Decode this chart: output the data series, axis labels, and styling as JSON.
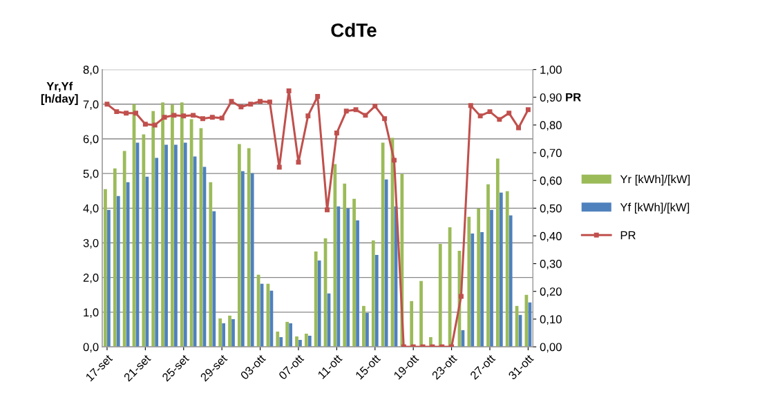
{
  "chart_data": {
    "type": "bar",
    "title": "CdTe",
    "ylabel": "Yr,Yf\n[h/day]",
    "y2label": "PR",
    "categories": [
      "17-set",
      null,
      null,
      null,
      "21-set",
      null,
      null,
      null,
      "25-set",
      null,
      null,
      null,
      "29-set",
      null,
      null,
      null,
      "03-ott",
      null,
      null,
      null,
      "07-ott",
      null,
      null,
      null,
      "11-ott",
      null,
      null,
      null,
      "15-ott",
      null,
      null,
      null,
      "19-ott",
      null,
      null,
      null,
      "23-ott",
      null,
      null,
      null,
      "27-ott",
      null,
      null,
      null,
      "31-ott"
    ],
    "series": [
      {
        "name": "Yr [kWh]/[kW]",
        "color": "#9bbb59",
        "values": [
          4.55,
          5.15,
          5.65,
          7.0,
          6.13,
          6.8,
          7.05,
          6.99,
          7.05,
          6.57,
          6.31,
          4.75,
          0.82,
          0.9,
          5.85,
          5.73,
          2.08,
          1.82,
          0.44,
          0.72,
          0.3,
          0.38,
          2.75,
          3.13,
          5.27,
          4.71,
          4.27,
          1.18,
          3.07,
          5.89,
          6.03,
          4.99,
          1.32,
          1.9,
          0.28,
          2.97,
          3.45,
          2.77,
          3.75,
          3.99,
          4.69,
          5.43,
          4.49,
          1.18,
          1.5
        ]
      },
      {
        "name": "Yf [kWh]/[kW]",
        "color": "#4f81bd",
        "values": [
          3.95,
          4.35,
          4.75,
          5.89,
          4.91,
          5.45,
          5.83,
          5.83,
          5.89,
          5.49,
          5.19,
          3.91,
          0.68,
          0.8,
          5.07,
          5.01,
          1.82,
          1.62,
          0.28,
          0.68,
          0.2,
          0.32,
          2.49,
          1.54,
          4.05,
          3.99,
          3.65,
          0.98,
          2.65,
          4.83,
          4.05,
          null,
          null,
          null,
          null,
          null,
          null,
          0.48,
          3.27,
          3.31,
          3.95,
          4.45,
          3.79,
          0.92,
          1.28
        ]
      },
      {
        "name": "PR",
        "type": "line",
        "axis": "y2",
        "color": "#c0504d",
        "marker": "square",
        "values": [
          0.875,
          0.848,
          0.843,
          0.843,
          0.803,
          0.8,
          0.828,
          0.835,
          0.833,
          0.835,
          0.823,
          0.828,
          0.825,
          0.885,
          0.865,
          0.875,
          0.885,
          0.883,
          0.648,
          0.923,
          0.666,
          0.833,
          0.903,
          0.494,
          0.771,
          0.85,
          0.855,
          0.835,
          0.868,
          0.823,
          0.673,
          0,
          0,
          0,
          0,
          0,
          0,
          0.182,
          0.87,
          0.833,
          0.848,
          0.82,
          0.843,
          0.79,
          0.855
        ]
      }
    ],
    "ylim": [
      0,
      8
    ],
    "yticks": [
      {
        "value": 0,
        "label": "0,0"
      },
      {
        "value": 1,
        "label": "1,0"
      },
      {
        "value": 2,
        "label": "2,0"
      },
      {
        "value": 3,
        "label": "3,0"
      },
      {
        "value": 4,
        "label": "4,0"
      },
      {
        "value": 5,
        "label": "5,0"
      },
      {
        "value": 6,
        "label": "6,0"
      },
      {
        "value": 7,
        "label": "7,0"
      },
      {
        "value": 8,
        "label": "8,0"
      }
    ],
    "y2lim": [
      0,
      1
    ],
    "y2ticks": [
      {
        "value": 0,
        "label": "0,00"
      },
      {
        "value": 0.1,
        "label": "0,10"
      },
      {
        "value": 0.2,
        "label": "0,20"
      },
      {
        "value": 0.3,
        "label": "0,30"
      },
      {
        "value": 0.4,
        "label": "0,40"
      },
      {
        "value": 0.5,
        "label": "0,50"
      },
      {
        "value": 0.6,
        "label": "0,60"
      },
      {
        "value": 0.7,
        "label": "0,70"
      },
      {
        "value": 0.8,
        "label": "0,80"
      },
      {
        "value": 0.9,
        "label": "0,90"
      },
      {
        "value": 1,
        "label": "1,00"
      }
    ],
    "grid": "y",
    "legend": "right"
  }
}
